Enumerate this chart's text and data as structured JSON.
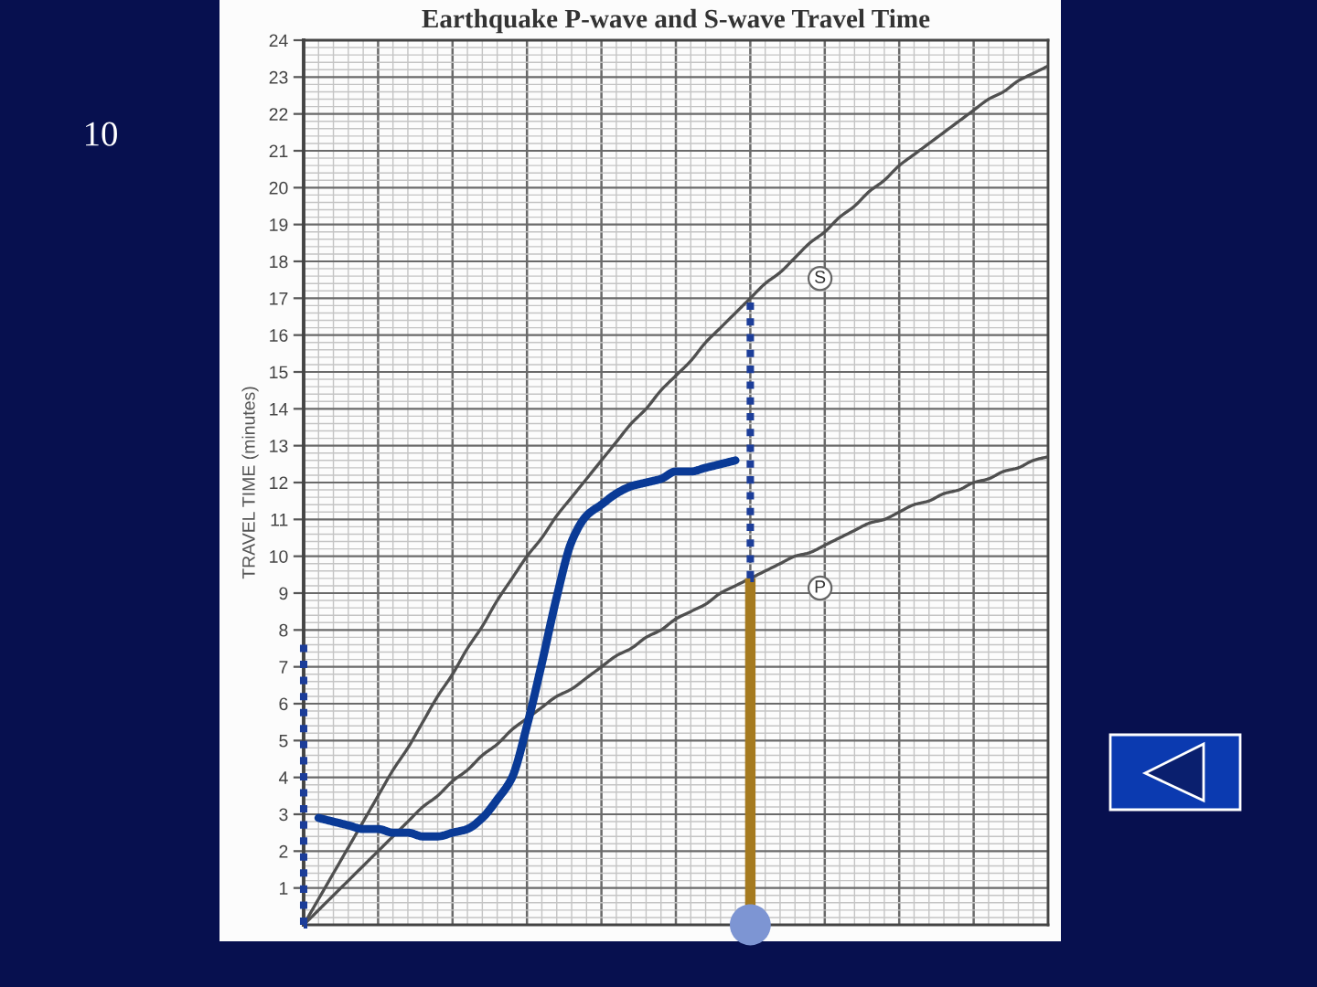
{
  "chart_data": {
    "type": "line",
    "title": "Earthquake P-wave and S-wave Travel Time",
    "ylabel": "TRAVEL TIME (minutes)",
    "annotations": [
      "10"
    ],
    "categories": [
      null,
      null,
      null,
      null,
      null,
      null,
      null,
      null,
      null,
      null,
      null,
      null,
      null,
      null,
      null,
      null,
      null,
      null,
      null,
      null,
      null,
      null,
      null,
      null,
      null,
      null,
      null,
      null,
      null,
      null,
      null,
      null,
      null,
      null,
      null,
      null,
      null,
      null,
      null,
      null,
      null,
      null,
      null,
      null,
      null,
      null,
      null,
      null,
      null,
      null,
      null
    ],
    "series": [
      {
        "name": "S",
        "color": "#505050",
        "values": [
          0,
          0.7,
          1.4,
          2.1,
          2.8,
          3.5,
          4.2,
          4.8,
          5.5,
          6.2,
          6.8,
          7.5,
          8.1,
          8.8,
          9.4,
          10.0,
          10.5,
          11.1,
          11.6,
          12.1,
          12.6,
          13.1,
          13.6,
          14.0,
          14.5,
          14.9,
          15.3,
          15.8,
          16.2,
          16.6,
          17.0,
          17.4,
          17.7,
          18.1,
          18.5,
          18.8,
          19.2,
          19.5,
          19.9,
          20.2,
          20.6,
          20.9,
          21.2,
          21.5,
          21.8,
          22.1,
          22.4,
          22.6,
          22.9,
          23.1,
          23.3
        ]
      },
      {
        "name": "P",
        "color": "#505050",
        "values": [
          0,
          0.4,
          0.8,
          1.2,
          1.6,
          2.0,
          2.4,
          2.8,
          3.2,
          3.5,
          3.9,
          4.2,
          4.6,
          4.9,
          5.3,
          5.6,
          5.9,
          6.2,
          6.4,
          6.7,
          7.0,
          7.3,
          7.5,
          7.8,
          8.0,
          8.3,
          8.5,
          8.7,
          9.0,
          9.2,
          9.4,
          9.6,
          9.8,
          10.0,
          10.1,
          10.3,
          10.5,
          10.7,
          10.9,
          11.0,
          11.2,
          11.4,
          11.5,
          11.7,
          11.8,
          12.0,
          12.1,
          12.3,
          12.4,
          12.6,
          12.7
        ]
      },
      {
        "color": "#0a3a96",
        "values": [
          null,
          2.9,
          2.8,
          2.7,
          2.6,
          2.6,
          2.5,
          2.5,
          2.4,
          2.4,
          2.5,
          2.6,
          2.9,
          3.4,
          4.0,
          5.4,
          7.1,
          8.9,
          10.4,
          11.1,
          11.4,
          11.7,
          11.9,
          12.0,
          12.1,
          12.3,
          12.3,
          12.4,
          12.5,
          12.6,
          null,
          null,
          null,
          null,
          null,
          null,
          null,
          null,
          null,
          null,
          null,
          null,
          null,
          null,
          null,
          null,
          null,
          null,
          null,
          null,
          null
        ]
      },
      {
        "type": "bar",
        "color": "#a57a1f",
        "values": [
          null,
          null,
          null,
          null,
          null,
          null,
          null,
          null,
          null,
          null,
          null,
          null,
          null,
          null,
          null,
          null,
          null,
          null,
          null,
          null,
          null,
          null,
          null,
          null,
          null,
          null,
          null,
          null,
          null,
          null,
          9.4,
          null,
          null,
          null,
          null,
          null,
          null,
          null,
          null,
          null,
          null,
          null,
          null,
          null,
          null,
          null,
          null,
          null,
          null,
          null,
          null
        ]
      },
      {
        "type": "bar",
        "color": "#1c3d99",
        "line_style": "dotted",
        "values": [
          7.5,
          null,
          null,
          null,
          null,
          null,
          null,
          null,
          null,
          null,
          null,
          null,
          null,
          null,
          null,
          null,
          null,
          null,
          null,
          null,
          null,
          null,
          null,
          null,
          null,
          null,
          null,
          null,
          null,
          null,
          7.6,
          null,
          null,
          null,
          null,
          null,
          null,
          null,
          null,
          null,
          null,
          null,
          null,
          null,
          null,
          null,
          null,
          null,
          null,
          null,
          null
        ]
      },
      {
        "type": "scatter",
        "color": "#7d95d3",
        "marker": "circle",
        "values": [
          null,
          null,
          null,
          null,
          null,
          null,
          null,
          null,
          null,
          null,
          null,
          null,
          null,
          null,
          null,
          null,
          null,
          null,
          null,
          null,
          null,
          null,
          null,
          null,
          null,
          null,
          null,
          null,
          null,
          null,
          0,
          null,
          null,
          null,
          null,
          null,
          null,
          null,
          null,
          null,
          null,
          null,
          null,
          null,
          null,
          null,
          null,
          null,
          null,
          null,
          null
        ]
      }
    ],
    "stacked": true,
    "ylim": [
      0,
      24
    ],
    "yticks": [
      1,
      2,
      3,
      4,
      5,
      6,
      7,
      8,
      9,
      10,
      11,
      12,
      13,
      14,
      15,
      16,
      17,
      18,
      19,
      20,
      21,
      22,
      23,
      24
    ],
    "grid": true,
    "tick_labels": "y"
  }
}
